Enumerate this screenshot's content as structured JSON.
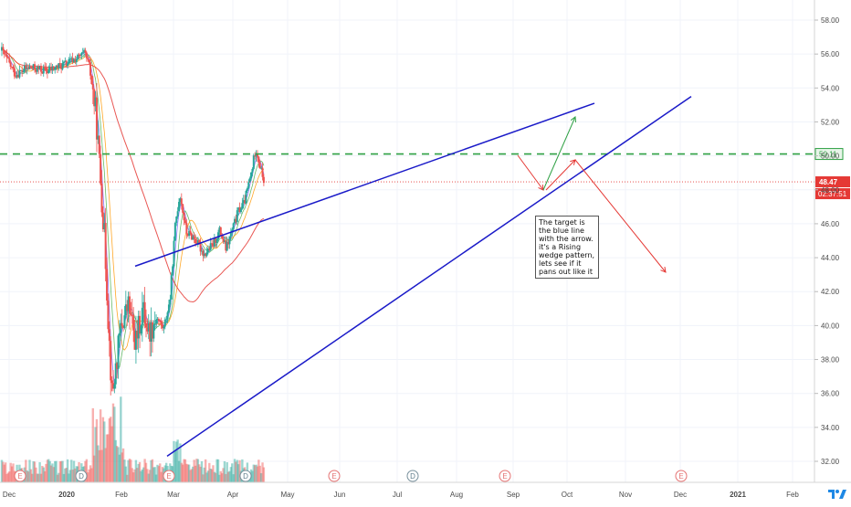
{
  "chart_data": {
    "type": "candlestick",
    "y_ticks": [
      "58.00",
      "56.00",
      "54.00",
      "52.00",
      "50.00",
      "48.00",
      "46.00",
      "44.00",
      "42.00",
      "40.00",
      "38.00",
      "36.00",
      "34.00",
      "32.00"
    ],
    "x_ticks": [
      "Dec",
      "2020",
      "Feb",
      "Mar",
      "Apr",
      "May",
      "Jun",
      "Jul",
      "Aug",
      "Sep",
      "Oct",
      "Nov",
      "Dec",
      "2021",
      "Feb"
    ],
    "ylim": [
      31.4,
      58.8
    ],
    "last_price_label": "48.47",
    "countdown_label": "02:37:51",
    "horizontal_levels": [
      {
        "label": "50.11",
        "value": 50.11,
        "style": "dashed",
        "color": "#2ea043"
      },
      {
        "label": "",
        "value": 48.47,
        "style": "dotted",
        "color": "#e53935"
      }
    ],
    "trendlines": [
      {
        "name": "upper-wedge",
        "from": [
          "Dec 2019 +8w",
          43.5
        ],
        "to": [
          "Sep 2020 +3w",
          53.1
        ],
        "color": "#1a1ac8"
      },
      {
        "name": "lower-wedge",
        "from": [
          "Mar 2020 -2d",
          32.3
        ],
        "to": [
          "Nov 2020 +3w",
          53.5
        ],
        "color": "#1a1ac8"
      }
    ],
    "annotation": "The target is the blue line with the arrow. it's a Rising wedge pattern, lets see if it pans out like it",
    "earnings_markers": [
      "E",
      "D",
      "E",
      "D",
      "E",
      "D",
      "E",
      "E"
    ],
    "colors": {
      "up": "#26a69a",
      "down": "#ef5350",
      "wedge": "#1a1ac8",
      "level_green": "#2ea043",
      "price_red": "#e53935"
    }
  }
}
